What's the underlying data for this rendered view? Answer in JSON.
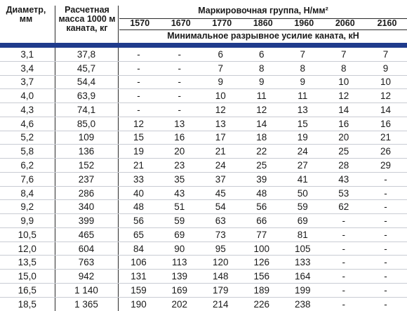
{
  "header": {
    "diameter_label": "Диаметр, мм",
    "mass_label": "Расчетная масса 1000 м каната, кг",
    "group_label": "Маркировочная группа, Н/мм²",
    "force_label": "Минимальное разрывное усилие каната, кН",
    "groups": [
      "1570",
      "1670",
      "1770",
      "1860",
      "1960",
      "2060",
      "2160"
    ]
  },
  "colors": {
    "accent": "#1f3b8c",
    "grid": "#c9ccd3",
    "text": "#1a1a1a"
  },
  "rows": [
    [
      "3,1",
      "37,8",
      "-",
      "-",
      "6",
      "6",
      "7",
      "7",
      "7"
    ],
    [
      "3,4",
      "45,7",
      "-",
      "-",
      "7",
      "8",
      "8",
      "8",
      "9"
    ],
    [
      "3,7",
      "54,4",
      "-",
      "-",
      "9",
      "9",
      "9",
      "10",
      "10"
    ],
    [
      "4,0",
      "63,9",
      "-",
      "-",
      "10",
      "11",
      "11",
      "12",
      "12"
    ],
    [
      "4,3",
      "74,1",
      "-",
      "-",
      "12",
      "12",
      "13",
      "14",
      "14"
    ],
    [
      "4,6",
      "85,0",
      "12",
      "13",
      "13",
      "14",
      "15",
      "16",
      "16"
    ],
    [
      "5,2",
      "109",
      "15",
      "16",
      "17",
      "18",
      "19",
      "20",
      "21"
    ],
    [
      "5,8",
      "136",
      "19",
      "20",
      "21",
      "22",
      "24",
      "25",
      "26"
    ],
    [
      "6,2",
      "152",
      "21",
      "23",
      "24",
      "25",
      "27",
      "28",
      "29"
    ],
    [
      "7,6",
      "237",
      "33",
      "35",
      "37",
      "39",
      "41",
      "43",
      "-"
    ],
    [
      "8,4",
      "286",
      "40",
      "43",
      "45",
      "48",
      "50",
      "53",
      "-"
    ],
    [
      "9,2",
      "340",
      "48",
      "51",
      "54",
      "56",
      "59",
      "62",
      "-"
    ],
    [
      "9,9",
      "399",
      "56",
      "59",
      "63",
      "66",
      "69",
      "-",
      "-"
    ],
    [
      "10,5",
      "465",
      "65",
      "69",
      "73",
      "77",
      "81",
      "-",
      "-"
    ],
    [
      "12,0",
      "604",
      "84",
      "90",
      "95",
      "100",
      "105",
      "-",
      "-"
    ],
    [
      "13,5",
      "763",
      "106",
      "113",
      "120",
      "126",
      "133",
      "-",
      "-"
    ],
    [
      "15,0",
      "942",
      "131",
      "139",
      "148",
      "156",
      "164",
      "-",
      "-"
    ],
    [
      "16,5",
      "1 140",
      "159",
      "169",
      "179",
      "189",
      "199",
      "-",
      "-"
    ],
    [
      "18,5",
      "1 365",
      "190",
      "202",
      "214",
      "226",
      "238",
      "-",
      "-"
    ]
  ]
}
